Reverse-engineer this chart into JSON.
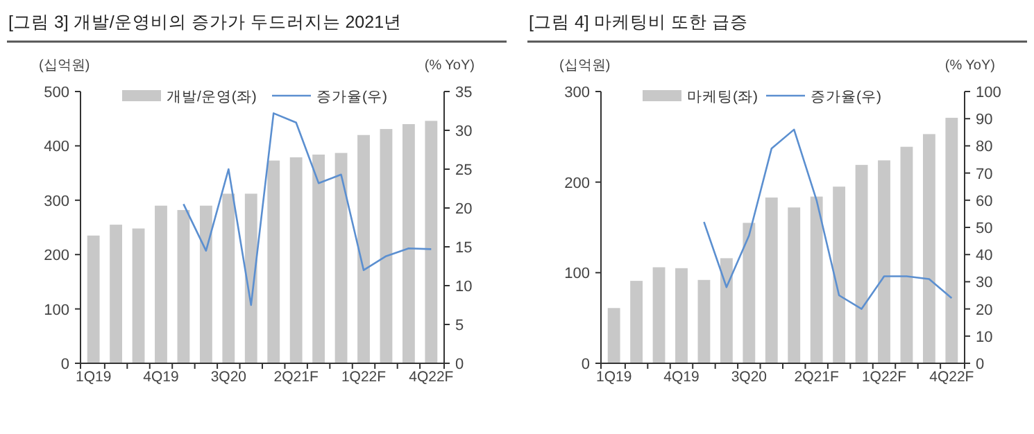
{
  "chart_data": [
    {
      "type": "bar",
      "title": "[그림 3] 개발/운영비의 증가가 두드러지는 2021년",
      "ylabel": "(십억원)",
      "y2label": "(% YoY)",
      "categories": [
        "1Q19",
        null,
        null,
        "4Q19",
        null,
        null,
        "3Q20",
        null,
        null,
        "2Q21F",
        null,
        null,
        "1Q22F",
        null,
        null,
        "4Q22F"
      ],
      "series": [
        {
          "name": "개발/운영(좌)",
          "color": "#c8c8c8",
          "values": [
            235,
            255,
            248,
            290,
            282,
            290,
            312,
            312,
            373,
            379,
            384,
            387,
            420,
            431,
            440,
            446
          ]
        },
        {
          "name": "증가율(우)",
          "type": "line",
          "axis": "y2",
          "color": "#5b8fd0",
          "values": [
            null,
            null,
            null,
            null,
            20.5,
            14.5,
            25,
            7.5,
            32.2,
            31,
            23.2,
            24.3,
            12,
            13.8,
            14.8,
            14.7
          ]
        }
      ],
      "ylim": [
        0,
        500
      ],
      "yticks": [
        0,
        100,
        200,
        300,
        400,
        500
      ],
      "y2lim": [
        0,
        35
      ],
      "y2ticks": [
        0,
        5,
        10,
        15,
        20,
        25,
        30,
        35
      ],
      "legend": "top",
      "grid": false
    },
    {
      "type": "bar",
      "title": "[그림 4] 마케팅비 또한 급증",
      "ylabel": "(십억원)",
      "y2label": "(% YoY)",
      "categories": [
        "1Q19",
        null,
        null,
        "4Q19",
        null,
        null,
        "3Q20",
        null,
        null,
        "2Q21F",
        null,
        null,
        "1Q22F",
        null,
        null,
        "4Q22F"
      ],
      "series": [
        {
          "name": "마케팅(좌)",
          "color": "#c8c8c8",
          "values": [
            61,
            91,
            106,
            105,
            92,
            116,
            155,
            183,
            172,
            184,
            195,
            219,
            224,
            239,
            253,
            271
          ]
        },
        {
          "name": "증가율(우)",
          "type": "line",
          "axis": "y2",
          "color": "#5b8fd0",
          "values": [
            null,
            null,
            null,
            null,
            52,
            28,
            47,
            79,
            86,
            60,
            25,
            20,
            32,
            32,
            31,
            24
          ]
        }
      ],
      "ylim": [
        0,
        300
      ],
      "yticks": [
        0,
        100,
        200,
        300
      ],
      "y2lim": [
        0,
        100
      ],
      "y2ticks": [
        0,
        10,
        20,
        30,
        40,
        50,
        60,
        70,
        80,
        90,
        100
      ],
      "legend": "top",
      "grid": false
    }
  ]
}
